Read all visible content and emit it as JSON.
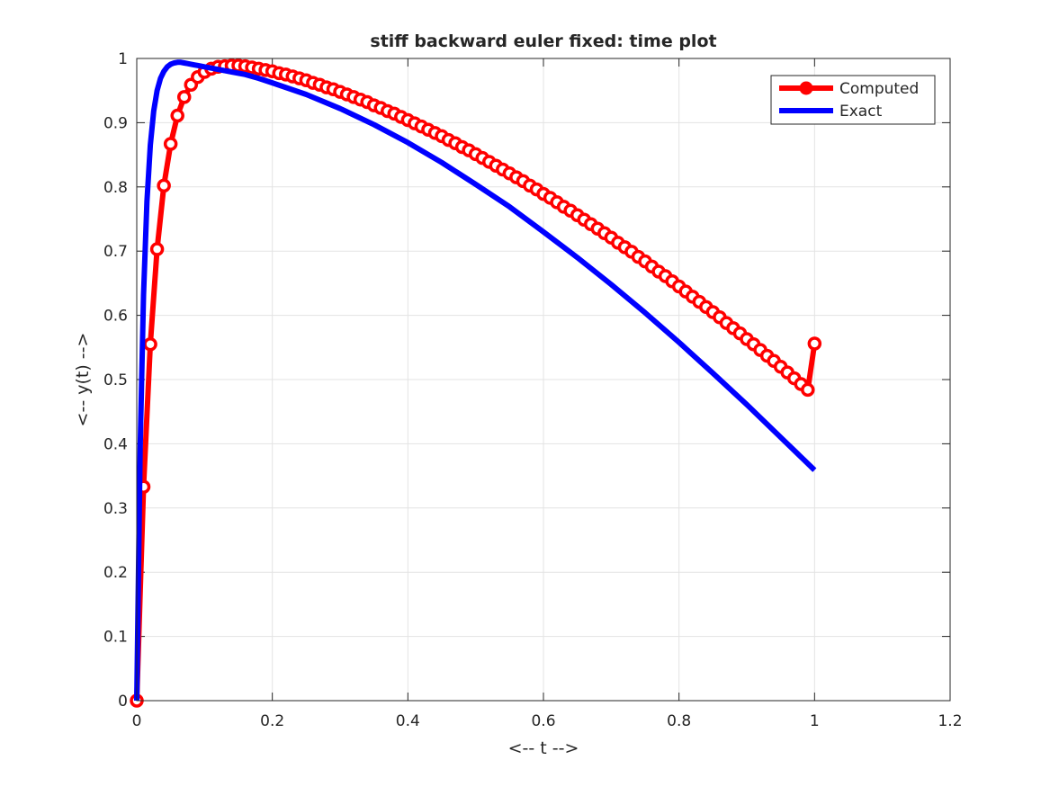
{
  "chart_data": {
    "type": "line",
    "title": "stiff backward euler fixed: time plot",
    "xlabel": "<-- t -->",
    "ylabel": "<-- y(t) -->",
    "xlim": [
      0,
      1.2
    ],
    "ylim": [
      0,
      1
    ],
    "xticks": [
      0,
      0.2,
      0.4,
      0.6,
      0.8,
      1,
      1.2
    ],
    "yticks": [
      0,
      0.1,
      0.2,
      0.3,
      0.4,
      0.5,
      0.6,
      0.7,
      0.8,
      0.9,
      1
    ],
    "xtick_labels": [
      "0",
      "0.2",
      "0.4",
      "0.6",
      "0.8",
      "1",
      "1.2"
    ],
    "ytick_labels": [
      "0",
      "0.1",
      "0.2",
      "0.3",
      "0.4",
      "0.5",
      "0.6",
      "0.7",
      "0.8",
      "0.9",
      "1"
    ],
    "grid": true,
    "legend_position": "top-right",
    "series": [
      {
        "name": "Computed",
        "color": "#ff0000",
        "marker": "circle",
        "x": [
          0,
          0.01,
          0.02,
          0.03,
          0.04,
          0.05,
          0.06,
          0.07,
          0.08,
          0.09,
          0.1,
          0.11,
          0.12,
          0.13,
          0.14,
          0.15,
          0.16,
          0.17,
          0.18,
          0.19,
          0.2,
          0.21,
          0.22,
          0.23,
          0.24,
          0.25,
          0.26,
          0.27,
          0.28,
          0.29,
          0.3,
          0.31,
          0.32,
          0.33,
          0.34,
          0.35,
          0.36,
          0.37,
          0.38,
          0.39,
          0.4,
          0.41,
          0.42,
          0.43,
          0.44,
          0.45,
          0.46,
          0.47,
          0.48,
          0.49,
          0.5,
          0.51,
          0.52,
          0.53,
          0.54,
          0.55,
          0.56,
          0.57,
          0.58,
          0.59,
          0.6,
          0.61,
          0.62,
          0.63,
          0.64,
          0.65,
          0.66,
          0.67,
          0.68,
          0.69,
          0.7,
          0.71,
          0.72,
          0.73,
          0.74,
          0.75,
          0.76,
          0.77,
          0.78,
          0.79,
          0.8,
          0.81,
          0.82,
          0.83,
          0.84,
          0.85,
          0.86,
          0.87,
          0.88,
          0.89,
          0.9,
          0.91,
          0.92,
          0.93,
          0.94,
          0.95,
          0.96,
          0.97,
          0.98,
          0.99,
          1.0
        ],
        "y": [
          0,
          0.333,
          0.555,
          0.703,
          0.802,
          0.867,
          0.911,
          0.94,
          0.959,
          0.971,
          0.979,
          0.984,
          0.987,
          0.988,
          0.989,
          0.989,
          0.988,
          0.986,
          0.984,
          0.982,
          0.98,
          0.977,
          0.975,
          0.972,
          0.969,
          0.966,
          0.962,
          0.959,
          0.955,
          0.952,
          0.948,
          0.944,
          0.94,
          0.936,
          0.932,
          0.927,
          0.923,
          0.918,
          0.914,
          0.909,
          0.904,
          0.899,
          0.894,
          0.889,
          0.884,
          0.879,
          0.873,
          0.868,
          0.862,
          0.857,
          0.851,
          0.845,
          0.839,
          0.833,
          0.827,
          0.821,
          0.815,
          0.809,
          0.802,
          0.796,
          0.789,
          0.783,
          0.776,
          0.769,
          0.763,
          0.756,
          0.749,
          0.742,
          0.735,
          0.728,
          0.721,
          0.713,
          0.706,
          0.699,
          0.691,
          0.684,
          0.676,
          0.668,
          0.661,
          0.653,
          0.645,
          0.637,
          0.629,
          0.621,
          0.613,
          0.605,
          0.597,
          0.588,
          0.58,
          0.572,
          0.563,
          0.555,
          0.546,
          0.537,
          0.529,
          0.52,
          0.511,
          0.502,
          0.493,
          0.484,
          0.556
        ]
      },
      {
        "name": "Exact",
        "color": "#0000ff",
        "x": [
          0,
          0.005,
          0.01,
          0.015,
          0.02,
          0.025,
          0.03,
          0.035,
          0.04,
          0.045,
          0.05,
          0.055,
          0.06,
          0.065,
          0.07,
          0.075,
          0.08,
          0.085,
          0.09,
          0.095,
          0.1,
          0.11,
          0.12,
          0.13,
          0.14,
          0.15,
          0.16,
          0.18,
          0.2,
          0.25,
          0.3,
          0.35,
          0.4,
          0.45,
          0.5,
          0.55,
          0.6,
          0.65,
          0.7,
          0.75,
          0.8,
          0.85,
          0.9,
          0.95,
          1.0
        ],
        "y": [
          0,
          0.393,
          0.632,
          0.777,
          0.865,
          0.918,
          0.95,
          0.969,
          0.98,
          0.987,
          0.991,
          0.993,
          0.994,
          0.994,
          0.993,
          0.992,
          0.991,
          0.99,
          0.989,
          0.988,
          0.987,
          0.985,
          0.983,
          0.981,
          0.979,
          0.977,
          0.975,
          0.969,
          0.962,
          0.944,
          0.922,
          0.897,
          0.869,
          0.838,
          0.804,
          0.769,
          0.73,
          0.69,
          0.648,
          0.604,
          0.558,
          0.51,
          0.461,
          0.41,
          0.359
        ]
      }
    ]
  }
}
